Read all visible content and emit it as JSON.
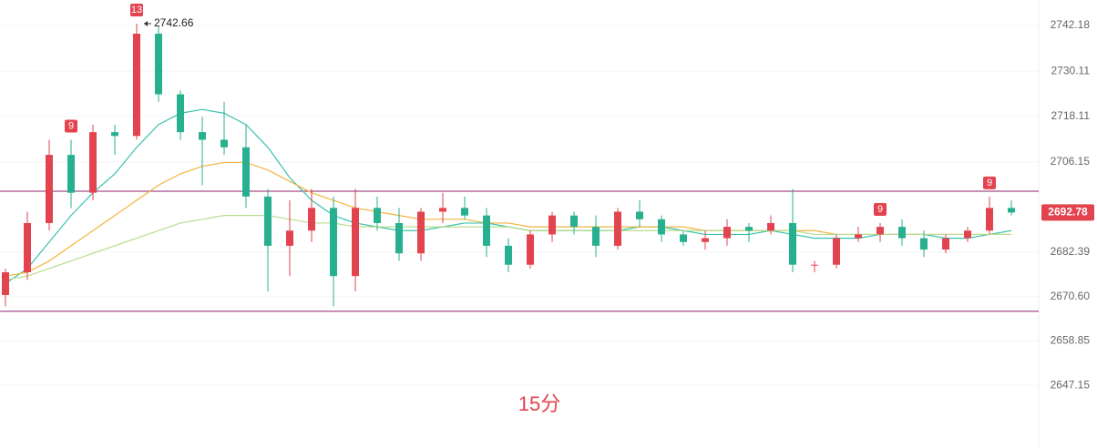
{
  "chart_data": {
    "type": "candlestick",
    "subtitle": "15分",
    "open": [
      2671,
      2677,
      2690,
      2708,
      2698,
      2714,
      2713,
      2740,
      2724,
      2714,
      2712,
      2710,
      2697,
      2684,
      2688,
      2694,
      2676,
      2694,
      2690,
      2682,
      2693,
      2694,
      2692,
      2684,
      2679,
      2687,
      2692,
      2689,
      2684,
      2693,
      2691,
      2687,
      2685,
      2686,
      2689,
      2688,
      2690,
      2679,
      2679,
      2686,
      2687,
      2689,
      2686,
      2683,
      2686,
      2688,
      2694
    ],
    "high": [
      2678,
      2693,
      2712,
      2712,
      2716,
      2716,
      2742.66,
      2742,
      2725,
      2718,
      2722,
      2716,
      2699,
      2696,
      2699,
      2697,
      2699,
      2697,
      2694,
      2694,
      2698,
      2697,
      2694,
      2686,
      2688,
      2693,
      2693,
      2692,
      2694,
      2696,
      2692,
      2688,
      2688,
      2691,
      2690,
      2692,
      2699,
      2680,
      2687,
      2689,
      2690,
      2691,
      2688,
      2687,
      2689,
      2697,
      2696
    ],
    "low": [
      2668,
      2675,
      2688,
      2694,
      2696,
      2708,
      2712,
      2722,
      2712,
      2700,
      2708,
      2694,
      2672,
      2676,
      2685,
      2668,
      2672,
      2688,
      2680,
      2680,
      2690,
      2691,
      2681,
      2677,
      2678,
      2685,
      2687,
      2681,
      2683,
      2689,
      2685,
      2684,
      2683,
      2684,
      2685,
      2687,
      2677,
      2677,
      2678,
      2685,
      2685,
      2684,
      2681,
      2682,
      2685,
      2687,
      2692
    ],
    "close": [
      2677,
      2690,
      2708,
      2698,
      2714,
      2713,
      2740,
      2724,
      2714,
      2712,
      2710,
      2697,
      2684,
      2688,
      2694,
      2676,
      2694,
      2690,
      2682,
      2693,
      2694,
      2692,
      2684,
      2679,
      2687,
      2692,
      2689,
      2684,
      2693,
      2691,
      2687,
      2685,
      2686,
      2689,
      2688,
      2690,
      2679,
      2679,
      2686,
      2687,
      2689,
      2686,
      2683,
      2686,
      2688,
      2694,
      2692.78
    ],
    "up_color": "#e2434f",
    "down_color": "#26b08f",
    "series": [
      {
        "color": "#39c2b0",
        "values": [
          2674,
          2678,
          2685,
          2692,
          2698,
          2703,
          2710,
          2716,
          2719,
          2720,
          2719,
          2716,
          2710,
          2702,
          2696,
          2692,
          2690,
          2689,
          2688,
          2688,
          2689,
          2690,
          2690,
          2689,
          2688,
          2688,
          2688,
          2688,
          2688,
          2689,
          2689,
          2688,
          2687,
          2687,
          2687,
          2688,
          2687,
          2686,
          2686,
          2686,
          2687,
          2687,
          2687,
          2686,
          2686,
          2687,
          2688
        ]
      },
      {
        "color": "#f2b43c",
        "values": [
          2676,
          2677,
          2680,
          2684,
          2688,
          2692,
          2696,
          2700,
          2703,
          2705,
          2706,
          2706,
          2704,
          2701,
          2698,
          2696,
          2694,
          2693,
          2692,
          2691,
          2691,
          2691,
          2690,
          2690,
          2689,
          2689,
          2689,
          2689,
          2689,
          2689,
          2689,
          2689,
          2688,
          2688,
          2688,
          2688,
          2688,
          2688,
          2687,
          2687,
          2687,
          2687,
          2687,
          2687,
          2687,
          2687,
          2687
        ]
      },
      {
        "color": "#b7dc8e",
        "values": [
          2675,
          2676,
          2678,
          2680,
          2682,
          2684,
          2686,
          2688,
          2690,
          2691,
          2692,
          2692,
          2692,
          2691,
          2690,
          2690,
          2689,
          2689,
          2689,
          2689,
          2689,
          2689,
          2689,
          2689,
          2688,
          2688,
          2688,
          2688,
          2688,
          2688,
          2688,
          2688,
          2688,
          2688,
          2688,
          2688,
          2688,
          2687,
          2687,
          2687,
          2687,
          2687,
          2687,
          2687,
          2687,
          2687,
          2687
        ]
      }
    ],
    "levels": [
      2698.4,
      2666.7
    ],
    "level_color": "#8e1f6e",
    "high_mark": 2742.66,
    "markers": [
      {
        "candle": 6,
        "label": "13"
      },
      {
        "candle": 3,
        "label": "9"
      },
      {
        "candle": 40,
        "label": "9"
      },
      {
        "candle": 45,
        "label": "9"
      }
    ],
    "ylim": [
      2630.6,
      2748.9
    ],
    "yticks": [
      2742.18,
      2730.11,
      2718.11,
      2706.15,
      2682.39,
      {
        "value": 2670.6,
        "label": "2670.60"
      },
      2658.85,
      2647.15
    ],
    "grid": true
  }
}
